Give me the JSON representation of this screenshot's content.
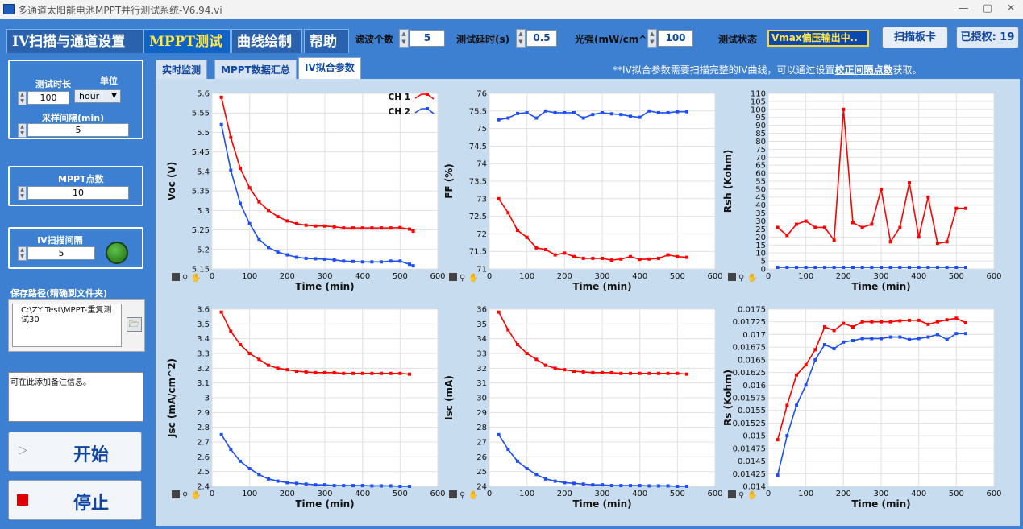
{
  "window": {
    "title": "多通道太阳能电池MPPT并行测试系统-V6.94.vi"
  },
  "main_tabs": [
    "IV扫描与通道设置",
    "MPPT测试",
    "曲线绘制",
    "帮助"
  ],
  "controls": {
    "filter_label": "滤波个数",
    "filter_value": "5",
    "delay_label": "测试延时(s)",
    "delay_value": "0.5",
    "light_label": "光强(mW/cm^2)",
    "light_value": "100",
    "status_label": "测试状态",
    "status_value": "Vmax偏压输出中..",
    "scan_card_label": "扫描板卡",
    "authorized_label": "已授权: 19"
  },
  "left": {
    "duration_label": "测试时长",
    "duration_value": "100",
    "unit_label": "单位",
    "unit_value": "hour",
    "sample_label": "采样间隔(min)",
    "sample_value": "5",
    "mppt_points_label": "MPPT点数",
    "mppt_points_value": "10",
    "iv_interval_label": "IV扫描间隔",
    "iv_interval_value": "5",
    "save_path_label": "保存路径(精确到文件夹)",
    "save_path_value": "C:\\ZY Test\\MPPT-重复测试30",
    "note_text": "可在此添加备注信息。",
    "start_label": "开始",
    "stop_label": "停止"
  },
  "sub_tabs": [
    "实时监测",
    "MPPT数据汇总",
    "IV拟合参数"
  ],
  "note": {
    "prefix": "**IV拟合参数需要扫描完整的IV曲线，可以通过设置",
    "link": "校正间隔点数",
    "suffix": "获取。"
  },
  "colors": {
    "ch1": "#ff0000",
    "ch2": "#1f4ff0"
  },
  "legend": [
    "CH 1",
    "CH 2"
  ],
  "chart_data": [
    {
      "type": "line",
      "ylabel": "Voc (V)",
      "xlabel": "Time (min)",
      "xlim": [
        0,
        600
      ],
      "ylim": [
        5.15,
        5.6
      ],
      "x": [
        25,
        50,
        75,
        100,
        125,
        150,
        175,
        200,
        225,
        250,
        275,
        300,
        325,
        350,
        375,
        400,
        425,
        450,
        475,
        500,
        525,
        535
      ],
      "yticks": [
        5.15,
        5.2,
        5.25,
        5.3,
        5.35,
        5.4,
        5.45,
        5.5,
        5.55,
        5.6
      ],
      "ytick_labels": [
        "5.15",
        "5.2",
        "5.25",
        "5.3",
        "5.35",
        "5.4",
        "5.45",
        "5.5",
        "5.55",
        "5.6"
      ],
      "series": [
        {
          "name": "CH 1",
          "values": [
            5.59,
            5.487,
            5.408,
            5.358,
            5.322,
            5.3,
            5.284,
            5.273,
            5.266,
            5.262,
            5.26,
            5.26,
            5.258,
            5.255,
            5.255,
            5.255,
            5.255,
            5.255,
            5.255,
            5.256,
            5.252,
            5.247
          ]
        },
        {
          "name": "CH 2",
          "values": [
            5.52,
            5.403,
            5.318,
            5.266,
            5.226,
            5.205,
            5.193,
            5.186,
            5.18,
            5.177,
            5.176,
            5.175,
            5.173,
            5.17,
            5.169,
            5.168,
            5.168,
            5.168,
            5.17,
            5.17,
            5.162,
            5.158
          ]
        }
      ],
      "legend": true
    },
    {
      "type": "line",
      "ylabel": "FF (%)",
      "xlabel": "Time (min)",
      "xlim": [
        0,
        600
      ],
      "ylim": [
        71,
        76
      ],
      "x": [
        25,
        50,
        75,
        100,
        125,
        150,
        175,
        200,
        225,
        250,
        275,
        300,
        325,
        350,
        375,
        400,
        425,
        450,
        475,
        500,
        525
      ],
      "yticks": [
        71,
        71.5,
        72,
        72.5,
        73,
        73.5,
        74,
        74.5,
        75,
        75.5,
        76
      ],
      "ytick_labels": [
        "71",
        "71.5",
        "72",
        "72.5",
        "73",
        "73.5",
        "74",
        "74.5",
        "75",
        "75.5",
        "76"
      ],
      "series": [
        {
          "name": "CH 1",
          "values": [
            73.0,
            72.6,
            72.1,
            71.9,
            71.6,
            71.55,
            71.4,
            71.45,
            71.35,
            71.3,
            71.3,
            71.3,
            71.25,
            71.28,
            71.35,
            71.27,
            71.28,
            71.3,
            71.4,
            71.35,
            71.33
          ]
        },
        {
          "name": "CH 2",
          "values": [
            75.25,
            75.3,
            75.43,
            75.45,
            75.3,
            75.5,
            75.45,
            75.45,
            75.45,
            75.3,
            75.4,
            75.45,
            75.42,
            75.4,
            75.35,
            75.32,
            75.5,
            75.45,
            75.45,
            75.48,
            75.48
          ]
        }
      ]
    },
    {
      "type": "line",
      "ylabel": "Rsh (Kohm)",
      "xlabel": "Time (min)",
      "xlim": [
        0,
        600
      ],
      "ylim": [
        0,
        110
      ],
      "x": [
        25,
        50,
        75,
        100,
        125,
        150,
        175,
        200,
        225,
        250,
        275,
        300,
        325,
        350,
        375,
        400,
        425,
        450,
        475,
        500,
        525
      ],
      "yticks": [
        0,
        5,
        10,
        15,
        20,
        25,
        30,
        35,
        40,
        45,
        50,
        55,
        60,
        65,
        70,
        75,
        80,
        85,
        90,
        95,
        100,
        105,
        110
      ],
      "ytick_labels": [
        "0",
        "5",
        "10",
        "15",
        "20",
        "25",
        "30",
        "35",
        "40",
        "45",
        "50",
        "55",
        "60",
        "65",
        "70",
        "75",
        "80",
        "85",
        "90",
        "95",
        "100",
        "105",
        "110"
      ],
      "series": [
        {
          "name": "CH 1",
          "values": [
            26,
            21,
            28,
            30,
            26,
            26,
            18,
            100,
            29,
            26,
            28,
            50,
            17,
            26,
            54,
            20,
            45,
            16,
            17,
            38,
            38
          ]
        },
        {
          "name": "CH 2",
          "values": [
            1,
            1,
            1,
            1,
            1,
            1,
            1,
            1,
            1,
            1,
            1,
            1,
            1,
            1,
            1,
            1,
            1,
            1,
            1,
            1,
            1
          ]
        }
      ]
    },
    {
      "type": "line",
      "ylabel": "Jsc (mA/cm^2)",
      "xlabel": "Time (min)",
      "xlim": [
        0,
        600
      ],
      "ylim": [
        2.4,
        3.6
      ],
      "x": [
        25,
        50,
        75,
        100,
        125,
        150,
        175,
        200,
        225,
        250,
        275,
        300,
        325,
        350,
        375,
        400,
        425,
        450,
        475,
        500,
        525
      ],
      "yticks": [
        2.4,
        2.5,
        2.6,
        2.7,
        2.8,
        2.9,
        3,
        3.1,
        3.2,
        3.3,
        3.4,
        3.5,
        3.6
      ],
      "ytick_labels": [
        "2.4",
        "2.5",
        "2.6",
        "2.7",
        "2.8",
        "2.9",
        "3",
        "3.1",
        "3.2",
        "3.3",
        "3.4",
        "3.5",
        "3.6"
      ],
      "series": [
        {
          "name": "CH 1",
          "values": [
            3.58,
            3.45,
            3.36,
            3.3,
            3.26,
            3.22,
            3.2,
            3.19,
            3.18,
            3.175,
            3.17,
            3.17,
            3.17,
            3.165,
            3.165,
            3.165,
            3.165,
            3.165,
            3.165,
            3.165,
            3.16
          ]
        },
        {
          "name": "CH 2",
          "values": [
            2.75,
            2.65,
            2.57,
            2.52,
            2.48,
            2.45,
            2.435,
            2.425,
            2.42,
            2.415,
            2.41,
            2.41,
            2.405,
            2.405,
            2.405,
            2.405,
            2.403,
            2.403,
            2.403,
            2.4,
            2.4
          ]
        }
      ]
    },
    {
      "type": "line",
      "ylabel": "Isc (mA)",
      "xlabel": "Time (min)",
      "xlim": [
        0,
        600
      ],
      "ylim": [
        24,
        36
      ],
      "x": [
        25,
        50,
        75,
        100,
        125,
        150,
        175,
        200,
        225,
        250,
        275,
        300,
        325,
        350,
        375,
        400,
        425,
        450,
        475,
        500,
        525
      ],
      "yticks": [
        24,
        25,
        26,
        27,
        28,
        29,
        30,
        31,
        32,
        33,
        34,
        35,
        36
      ],
      "ytick_labels": [
        "24",
        "25",
        "26",
        "27",
        "28",
        "29",
        "30",
        "31",
        "32",
        "33",
        "34",
        "35",
        "36"
      ],
      "series": [
        {
          "name": "CH 1",
          "values": [
            35.8,
            34.6,
            33.6,
            33.0,
            32.6,
            32.2,
            32.0,
            31.9,
            31.8,
            31.75,
            31.7,
            31.7,
            31.7,
            31.65,
            31.65,
            31.65,
            31.65,
            31.65,
            31.65,
            31.65,
            31.6
          ]
        },
        {
          "name": "CH 2",
          "values": [
            27.5,
            26.5,
            25.7,
            25.2,
            24.8,
            24.5,
            24.35,
            24.25,
            24.2,
            24.15,
            24.1,
            24.1,
            24.05,
            24.05,
            24.05,
            24.05,
            24.03,
            24.03,
            24.03,
            24.0,
            24.0
          ]
        }
      ]
    },
    {
      "type": "line",
      "ylabel": "Rs (Kohm)",
      "xlabel": "Time (min)",
      "xlim": [
        0,
        600
      ],
      "ylim": [
        0.014,
        0.0175
      ],
      "x": [
        25,
        50,
        75,
        100,
        125,
        150,
        175,
        200,
        225,
        250,
        275,
        300,
        325,
        350,
        375,
        400,
        425,
        450,
        475,
        500,
        525
      ],
      "yticks": [
        0.014,
        0.01425,
        0.0145,
        0.01475,
        0.015,
        0.01525,
        0.0155,
        0.01575,
        0.016,
        0.01625,
        0.0165,
        0.01675,
        0.017,
        0.01725,
        0.0175
      ],
      "ytick_labels": [
        "0.014",
        "0.01425",
        "0.0145",
        "0.01475",
        "0.015",
        "0.01525",
        "0.0155",
        "0.01575",
        "0.016",
        "0.01625",
        "0.0165",
        "0.01675",
        "0.017",
        "0.01725",
        "0.0175"
      ],
      "series": [
        {
          "name": "CH 1",
          "values": [
            0.01492,
            0.0156,
            0.0162,
            0.0164,
            0.0167,
            0.01715,
            0.01708,
            0.01722,
            0.01715,
            0.01725,
            0.01725,
            0.01725,
            0.01725,
            0.01727,
            0.01728,
            0.01728,
            0.0172,
            0.01725,
            0.01729,
            0.01732,
            0.01723
          ]
        },
        {
          "name": "CH 2",
          "values": [
            0.01422,
            0.015,
            0.0156,
            0.016,
            0.0165,
            0.0168,
            0.01672,
            0.01685,
            0.01688,
            0.01692,
            0.01692,
            0.01692,
            0.01695,
            0.01695,
            0.0169,
            0.01692,
            0.01695,
            0.017,
            0.0169,
            0.01702,
            0.01702
          ]
        }
      ]
    }
  ]
}
